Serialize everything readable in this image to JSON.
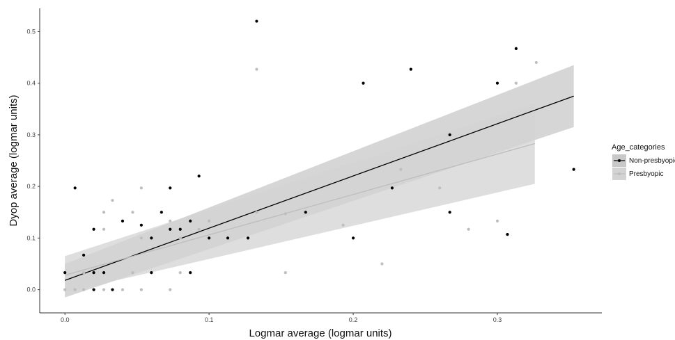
{
  "chart_data": {
    "type": "scatter",
    "xlabel": "Logmar average (logmar units)",
    "ylabel": "Dyop average (logmar units)",
    "xlim": [
      -0.0175,
      0.3725
    ],
    "ylim": [
      -0.045,
      0.545
    ],
    "x_ticks": [
      0.0,
      0.1,
      0.2,
      0.3
    ],
    "x_tick_labels": [
      "0.0",
      "0.1",
      "0.2",
      "0.3"
    ],
    "y_ticks": [
      0.0,
      0.1,
      0.2,
      0.3,
      0.4,
      0.5
    ],
    "y_tick_labels": [
      "0.0",
      "0.1",
      "0.2",
      "0.3",
      "0.4",
      "0.5"
    ],
    "grid": false,
    "legend": {
      "title": "Age_categories",
      "position": "right",
      "entries": [
        "Non-presbyopic",
        "Presbyopic"
      ]
    },
    "series": [
      {
        "name": "Non-presbyopic",
        "color": "#000000",
        "band_color": "#c8c8c8",
        "fit": {
          "x0": 0.0,
          "y0": 0.018,
          "x1": 0.353,
          "y1": 0.375
        },
        "ci_band": {
          "x": [
            0.0,
            0.353
          ],
          "lower": [
            -0.015,
            0.315
          ],
          "upper": [
            0.05,
            0.435
          ]
        },
        "points": [
          {
            "x": 0.0,
            "y": 0.033
          },
          {
            "x": 0.007,
            "y": 0.197
          },
          {
            "x": 0.013,
            "y": 0.067
          },
          {
            "x": 0.02,
            "y": 0.117
          },
          {
            "x": 0.02,
            "y": 0.033
          },
          {
            "x": 0.02,
            "y": 0.0
          },
          {
            "x": 0.027,
            "y": 0.033
          },
          {
            "x": 0.033,
            "y": 0.0
          },
          {
            "x": 0.04,
            "y": 0.133
          },
          {
            "x": 0.053,
            "y": 0.125
          },
          {
            "x": 0.06,
            "y": 0.1
          },
          {
            "x": 0.06,
            "y": 0.033
          },
          {
            "x": 0.067,
            "y": 0.15
          },
          {
            "x": 0.073,
            "y": 0.197
          },
          {
            "x": 0.073,
            "y": 0.117
          },
          {
            "x": 0.08,
            "y": 0.117
          },
          {
            "x": 0.087,
            "y": 0.133
          },
          {
            "x": 0.087,
            "y": 0.033
          },
          {
            "x": 0.093,
            "y": 0.22
          },
          {
            "x": 0.1,
            "y": 0.1
          },
          {
            "x": 0.113,
            "y": 0.1
          },
          {
            "x": 0.127,
            "y": 0.1
          },
          {
            "x": 0.133,
            "y": 0.52
          },
          {
            "x": 0.167,
            "y": 0.15
          },
          {
            "x": 0.2,
            "y": 0.1
          },
          {
            "x": 0.207,
            "y": 0.4
          },
          {
            "x": 0.227,
            "y": 0.197
          },
          {
            "x": 0.24,
            "y": 0.427
          },
          {
            "x": 0.267,
            "y": 0.3
          },
          {
            "x": 0.267,
            "y": 0.15
          },
          {
            "x": 0.3,
            "y": 0.4
          },
          {
            "x": 0.307,
            "y": 0.107
          },
          {
            "x": 0.313,
            "y": 0.467
          },
          {
            "x": 0.353,
            "y": 0.233
          }
        ]
      },
      {
        "name": "Presbyopic",
        "color": "#bdbdbd",
        "band_color": "#d3d3d3",
        "fit": {
          "x0": 0.0,
          "y0": 0.028,
          "x1": 0.326,
          "y1": 0.283
        },
        "ci_band": {
          "x": [
            0.0,
            0.326
          ],
          "lower": [
            -0.005,
            0.205
          ],
          "upper": [
            0.065,
            0.36
          ]
        },
        "points": [
          {
            "x": 0.0,
            "y": 0.0
          },
          {
            "x": 0.007,
            "y": 0.0
          },
          {
            "x": 0.013,
            "y": 0.0
          },
          {
            "x": 0.013,
            "y": 0.033
          },
          {
            "x": 0.02,
            "y": 0.033
          },
          {
            "x": 0.027,
            "y": 0.15
          },
          {
            "x": 0.027,
            "y": 0.117
          },
          {
            "x": 0.027,
            "y": 0.0
          },
          {
            "x": 0.033,
            "y": 0.173
          },
          {
            "x": 0.04,
            "y": 0.0
          },
          {
            "x": 0.047,
            "y": 0.15
          },
          {
            "x": 0.047,
            "y": 0.033
          },
          {
            "x": 0.053,
            "y": 0.197
          },
          {
            "x": 0.053,
            "y": 0.1
          },
          {
            "x": 0.053,
            "y": 0.0
          },
          {
            "x": 0.06,
            "y": 0.1
          },
          {
            "x": 0.073,
            "y": 0.133
          },
          {
            "x": 0.073,
            "y": 0.0
          },
          {
            "x": 0.08,
            "y": 0.1
          },
          {
            "x": 0.08,
            "y": 0.033
          },
          {
            "x": 0.093,
            "y": 0.117
          },
          {
            "x": 0.1,
            "y": 0.133
          },
          {
            "x": 0.133,
            "y": 0.427
          },
          {
            "x": 0.133,
            "y": 0.15
          },
          {
            "x": 0.153,
            "y": 0.147
          },
          {
            "x": 0.153,
            "y": 0.033
          },
          {
            "x": 0.193,
            "y": 0.125
          },
          {
            "x": 0.22,
            "y": 0.05
          },
          {
            "x": 0.233,
            "y": 0.233
          },
          {
            "x": 0.26,
            "y": 0.197
          },
          {
            "x": 0.28,
            "y": 0.117
          },
          {
            "x": 0.3,
            "y": 0.133
          },
          {
            "x": 0.313,
            "y": 0.4
          },
          {
            "x": 0.327,
            "y": 0.44
          }
        ]
      }
    ]
  }
}
